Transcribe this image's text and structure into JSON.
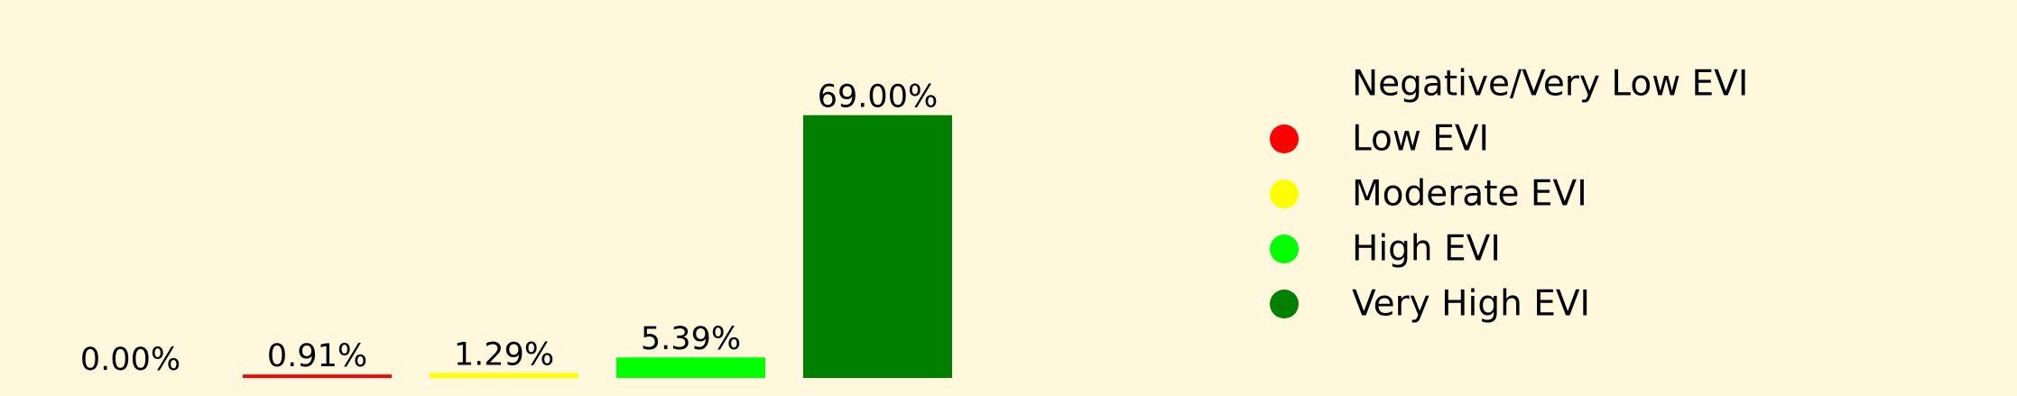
{
  "chart_data": {
    "type": "bar",
    "categories": [
      "Negative/Very Low EVI",
      "Low EVI",
      "Moderate EVI",
      "High EVI",
      "Very High EVI"
    ],
    "values": [
      0.0,
      0.91,
      1.29,
      5.39,
      69.0
    ],
    "data_labels": [
      "0.00%",
      "0.91%",
      "1.29%",
      "5.39%",
      "69.00%"
    ],
    "colors": [
      "#fff8dc",
      "#ff0000",
      "#ffff00",
      "#00ff00",
      "#008000"
    ],
    "ylim": [
      0,
      72
    ],
    "legend": {
      "placement": "right",
      "entries": [
        "Negative/Very Low EVI",
        "Low EVI",
        "Moderate EVI",
        "High EVI",
        "Very High EVI"
      ]
    },
    "background": "#fff8dc",
    "grid": false,
    "axes_visible": false
  }
}
